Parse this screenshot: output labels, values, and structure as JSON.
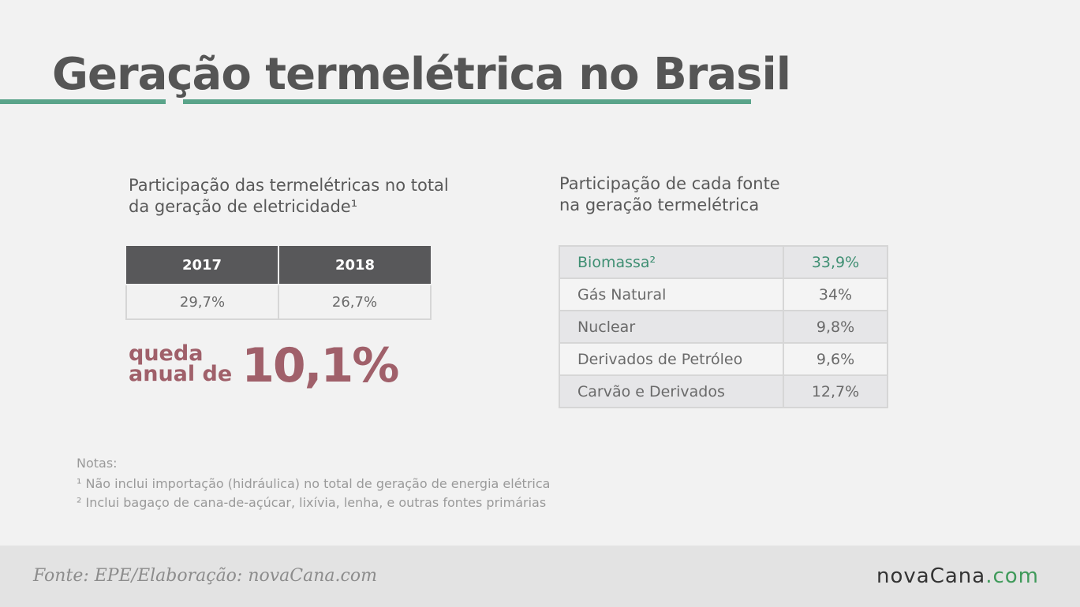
{
  "title": "Geração termelétrica no Brasil",
  "left_panel": {
    "heading": "Participação das termelétricas no total\nda geração de eletricidade¹"
  },
  "right_panel": {
    "heading": "Participação de cada fonte\nna geração termelétrica"
  },
  "decline": {
    "label": "queda\nanual de",
    "value": "10,1%"
  },
  "notes": {
    "heading": "Notas:",
    "items": [
      "¹ Não inclui importação (hidráulica) no total de geração de energia elétrica",
      "² Inclui bagaço de cana-de-açúcar, lixívia, lenha, e outras fontes primárias"
    ]
  },
  "footer": {
    "source": "Fonte: EPE/Elaboração: novaCana.com",
    "logo_main": "novaCana",
    "logo_suffix": ".com"
  },
  "colors": {
    "accent_green": "#5aa48a",
    "decline_red": "#a0606a",
    "header_dark": "#58585a"
  },
  "chart_data": [
    {
      "type": "table",
      "columns": [
        "2017",
        "2018"
      ],
      "rows": [
        [
          "29,7%",
          "26,7%"
        ]
      ]
    },
    {
      "type": "table",
      "rows": [
        [
          "Biomassa²",
          "33,9%"
        ],
        [
          "Gás Natural",
          "34%"
        ],
        [
          "Nuclear",
          "9,8%"
        ],
        [
          "Derivados de Petróleo",
          "9,6%"
        ],
        [
          "Carvão e Derivados",
          "12,7%"
        ]
      ],
      "highlighted_row": 0
    }
  ]
}
